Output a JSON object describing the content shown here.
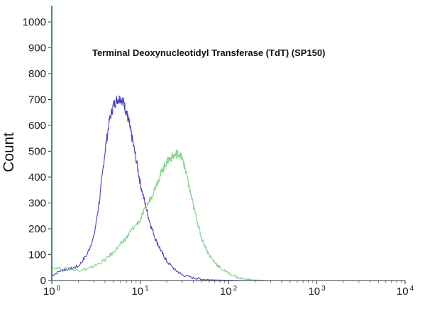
{
  "chart_data": {
    "type": "line",
    "title": "Terminal Deoxynucleotidyl Transferase (TdT)   (SP150)",
    "xlabel": "",
    "ylabel": "Count",
    "x_scale": "log",
    "xlim": [
      1,
      10000
    ],
    "ylim": [
      0,
      1050
    ],
    "x_ticks": [
      {
        "base": "10",
        "exp": "0"
      },
      {
        "base": "10",
        "exp": "1"
      },
      {
        "base": "10",
        "exp": "2"
      },
      {
        "base": "10",
        "exp": "3"
      },
      {
        "base": "10",
        "exp": "4"
      }
    ],
    "y_ticks": [
      "0",
      "100",
      "200",
      "300",
      "400",
      "500",
      "600",
      "700",
      "800",
      "900",
      "1000"
    ],
    "grid": false,
    "series": [
      {
        "color": "#4a3fc2",
        "x": [
          1.0,
          1.3,
          1.6,
          2.0,
          2.5,
          3.0,
          3.5,
          4.0,
          4.5,
          5.0,
          5.5,
          6.0,
          6.5,
          7.0,
          7.5,
          8.0,
          9.0,
          10.0,
          11.5,
          13.0,
          15.0,
          17.5,
          20.0,
          25.0,
          30.0,
          40.0,
          50.0,
          70.0,
          100.0,
          150.0,
          250.0
        ],
        "y": [
          20,
          40,
          45,
          55,
          100,
          170,
          320,
          500,
          620,
          680,
          700,
          705,
          690,
          650,
          610,
          560,
          470,
          380,
          290,
          220,
          160,
          110,
          75,
          40,
          22,
          10,
          5,
          2,
          1,
          0,
          0
        ]
      },
      {
        "color": "#7fd18e",
        "x": [
          1.0,
          1.5,
          2.0,
          2.5,
          3.0,
          4.0,
          5.0,
          6.0,
          7.0,
          8.0,
          10.0,
          12.0,
          14.0,
          16.0,
          18.0,
          20.0,
          22.0,
          25.0,
          27.0,
          30.0,
          33.0,
          36.0,
          40.0,
          45.0,
          50.0,
          60.0,
          70.0,
          80.0,
          100.0,
          130.0,
          160.0,
          200.0,
          300.0,
          10000.0
        ],
        "y": [
          50,
          45,
          40,
          45,
          55,
          80,
          110,
          140,
          165,
          195,
          235,
          290,
          340,
          390,
          430,
          460,
          475,
          485,
          495,
          470,
          420,
          360,
          290,
          220,
          160,
          100,
          70,
          50,
          28,
          10,
          4,
          2,
          0,
          0
        ]
      }
    ]
  }
}
